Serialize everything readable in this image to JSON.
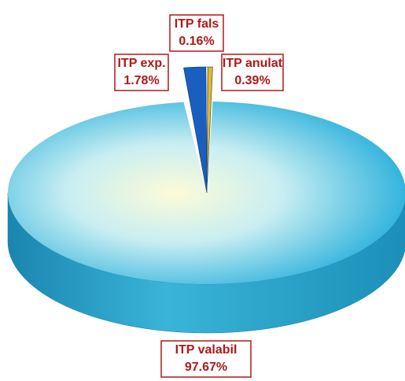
{
  "chart_data": {
    "type": "pie",
    "categories": [
      "ITP fals",
      "ITP anulat",
      "ITP valabil",
      "ITP exp."
    ],
    "values": [
      0.16,
      0.39,
      97.67,
      1.78
    ],
    "value_labels": [
      "0.16%",
      "0.39%",
      "97.67%",
      "1.78%"
    ],
    "colors": [
      "#f4f4f4",
      "#e8b820",
      "#5ec8ea",
      "#1a5fc0"
    ]
  }
}
